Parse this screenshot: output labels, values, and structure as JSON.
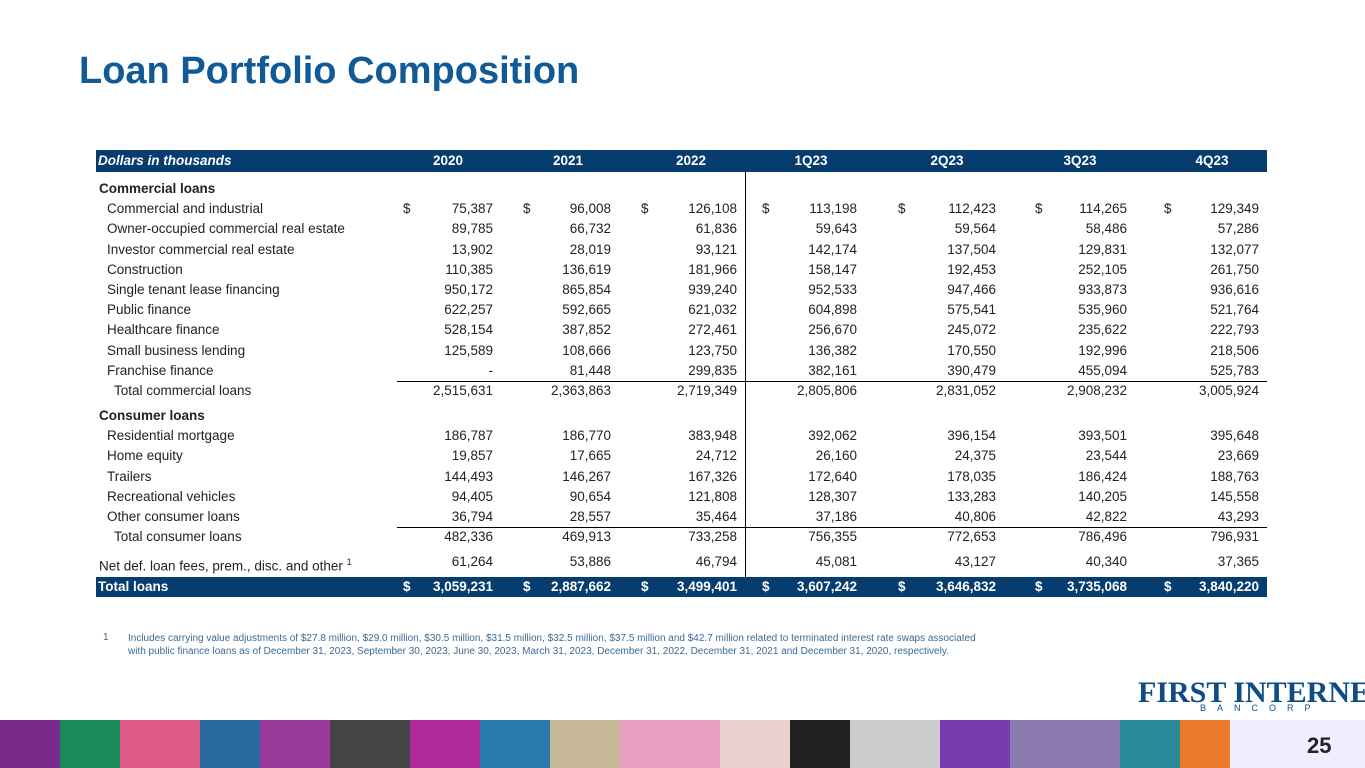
{
  "title": "Loan Portfolio Composition",
  "table": {
    "header": [
      "Dollars in thousands",
      "2020",
      "2021",
      "2022",
      "1Q23",
      "2Q23",
      "3Q23",
      "4Q23"
    ],
    "currency_symbol": "$",
    "sections": [
      {
        "heading": "Commercial loans",
        "rows": [
          {
            "label": "Commercial and industrial",
            "values": [
              "75,387",
              "96,008",
              "126,108",
              "113,198",
              "112,423",
              "114,265",
              "129,349"
            ]
          },
          {
            "label": "Owner-occupied commercial real estate",
            "values": [
              "89,785",
              "66,732",
              "61,836",
              "59,643",
              "59,564",
              "58,486",
              "57,286"
            ]
          },
          {
            "label": "Investor commercial real estate",
            "values": [
              "13,902",
              "28,019",
              "93,121",
              "142,174",
              "137,504",
              "129,831",
              "132,077"
            ]
          },
          {
            "label": "Construction",
            "values": [
              "110,385",
              "136,619",
              "181,966",
              "158,147",
              "192,453",
              "252,105",
              "261,750"
            ]
          },
          {
            "label": "Single tenant lease financing",
            "values": [
              "950,172",
              "865,854",
              "939,240",
              "952,533",
              "947,466",
              "933,873",
              "936,616"
            ]
          },
          {
            "label": "Public finance",
            "values": [
              "622,257",
              "592,665",
              "621,032",
              "604,898",
              "575,541",
              "535,960",
              "521,764"
            ]
          },
          {
            "label": "Healthcare finance",
            "values": [
              "528,154",
              "387,852",
              "272,461",
              "256,670",
              "245,072",
              "235,622",
              "222,793"
            ]
          },
          {
            "label": "Small business lending",
            "values": [
              "125,589",
              "108,666",
              "123,750",
              "136,382",
              "170,550",
              "192,996",
              "218,506"
            ]
          },
          {
            "label": "Franchise finance",
            "values": [
              "-",
              "81,448",
              "299,835",
              "382,161",
              "390,479",
              "455,094",
              "525,783"
            ]
          }
        ],
        "total": {
          "label": "Total commercial loans",
          "values": [
            "2,515,631",
            "2,363,863",
            "2,719,349",
            "2,805,806",
            "2,831,052",
            "2,908,232",
            "3,005,924"
          ]
        }
      },
      {
        "heading": "Consumer loans",
        "rows": [
          {
            "label": "Residential mortgage",
            "values": [
              "186,787",
              "186,770",
              "383,948",
              "392,062",
              "396,154",
              "393,501",
              "395,648"
            ]
          },
          {
            "label": "Home equity",
            "values": [
              "19,857",
              "17,665",
              "24,712",
              "26,160",
              "24,375",
              "23,544",
              "23,669"
            ]
          },
          {
            "label": "Trailers",
            "values": [
              "144,493",
              "146,267",
              "167,326",
              "172,640",
              "178,035",
              "186,424",
              "188,763"
            ]
          },
          {
            "label": "Recreational vehicles",
            "values": [
              "94,405",
              "90,654",
              "121,808",
              "128,307",
              "133,283",
              "140,205",
              "145,558"
            ]
          },
          {
            "label": "Other consumer loans",
            "values": [
              "36,794",
              "28,557",
              "35,464",
              "37,186",
              "40,806",
              "42,822",
              "43,293"
            ]
          }
        ],
        "total": {
          "label": "Total consumer loans",
          "values": [
            "482,336",
            "469,913",
            "733,258",
            "756,355",
            "772,653",
            "786,496",
            "796,931"
          ]
        }
      }
    ],
    "other": {
      "label": "Net def. loan fees, prem., disc. and other",
      "note": "1",
      "values": [
        "61,264",
        "53,886",
        "46,794",
        "45,081",
        "43,127",
        "40,340",
        "37,365"
      ]
    },
    "grand_total": {
      "label": "Total loans",
      "values": [
        "3,059,231",
        "2,887,662",
        "3,499,401",
        "3,607,242",
        "3,646,832",
        "3,735,068",
        "3,840,220"
      ]
    }
  },
  "footnote": {
    "marker": "1",
    "text": "Includes carrying value adjustments of $27.8 million, $29.0 million, $30.5 million, $31.5 million, $32.5 million, $37.5 million and $42.7 million related to terminated interest rate swaps associated with public finance loans as of December 31, 2023, September 30, 2023, June 30, 2023, March 31, 2023, December 31, 2022, December 31, 2021 and December 31, 2020, respectively."
  },
  "logo": {
    "name": "FIRST INTERNET",
    "sub": "BANCORP"
  },
  "page_number": "25"
}
